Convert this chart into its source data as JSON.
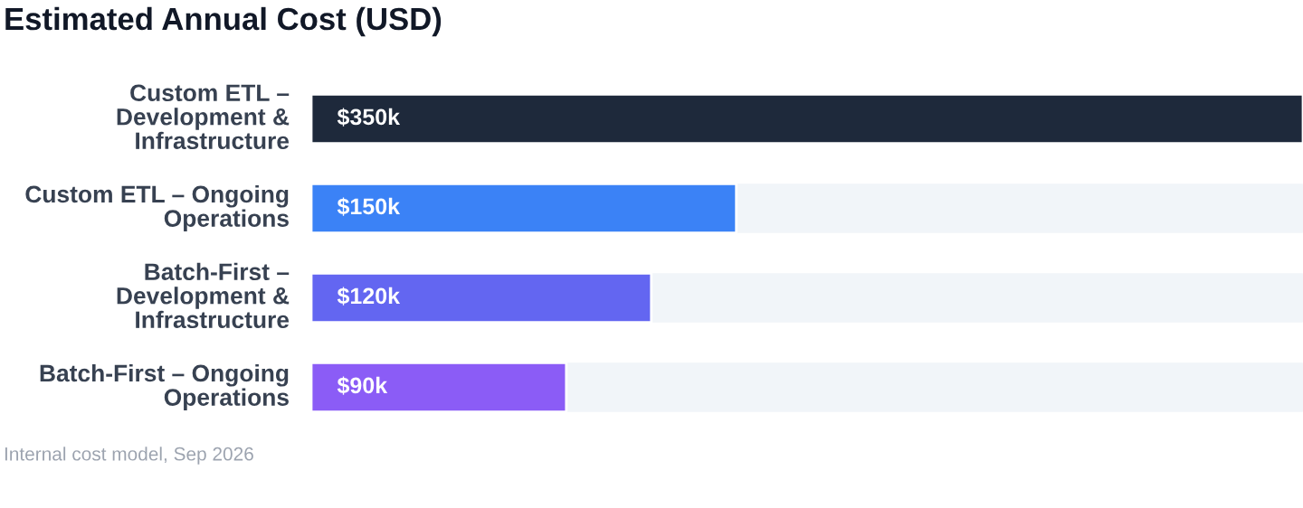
{
  "chart_data": {
    "type": "bar",
    "orientation": "horizontal",
    "title": "Estimated Annual Cost (USD)",
    "categories": [
      "Custom ETL – Development & Infrastructure",
      "Custom ETL – Ongoing Operations",
      "Batch-First – Development & Infrastructure",
      "Batch-First – Ongoing Operations"
    ],
    "values": [
      350,
      150,
      120,
      90
    ],
    "colors": [
      "#1e293b",
      "#3b82f6",
      "#6366f1",
      "#8b5cf6"
    ],
    "value_labels": [
      "$350k",
      "$150k",
      "$120k",
      "$90k"
    ],
    "annotations": [
      "Internal cost model, Sep 2026"
    ]
  }
}
